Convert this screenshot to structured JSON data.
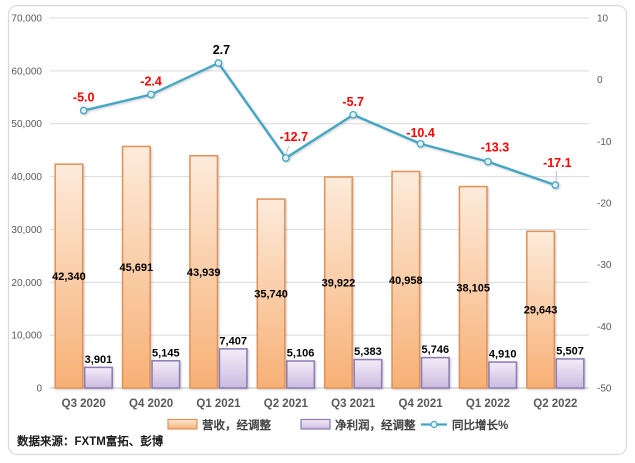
{
  "chart_data": {
    "type": "combo-bar-line",
    "categories": [
      "Q3 2020",
      "Q4 2020",
      "Q1 2021",
      "Q2 2021",
      "Q3 2021",
      "Q4 2021",
      "Q1 2022",
      "Q2 2022"
    ],
    "series": [
      {
        "name": "营收，经调整",
        "type": "bar",
        "axis": "left",
        "values": [
          42340,
          45691,
          43939,
          35740,
          39922,
          40958,
          38105,
          29643
        ],
        "value_labels": [
          "42,340",
          "45,691",
          "43,939",
          "35,740",
          "39,922",
          "40,958",
          "38,105",
          "29,643"
        ],
        "label_placement": "inside-center",
        "fill_top": "#FDEBDB",
        "fill_bottom": "#F7B075",
        "border": "#E09258"
      },
      {
        "name": "净利润，经调整",
        "type": "bar",
        "axis": "left",
        "values": [
          3901,
          5145,
          7407,
          5106,
          5383,
          5746,
          4910,
          5507
        ],
        "value_labels": [
          "3,901",
          "5,145",
          "7,407",
          "5,106",
          "5,383",
          "5,746",
          "4,910",
          "5,507"
        ],
        "label_placement": "outside-end",
        "fill_top": "#F2EDF8",
        "fill_bottom": "#CCBBE0",
        "border": "#8E7AB5"
      },
      {
        "name": "同比增长%",
        "type": "line",
        "axis": "right",
        "values": [
          -5.0,
          -2.4,
          2.7,
          -12.7,
          -5.7,
          -10.4,
          -13.3,
          -17.1
        ],
        "value_labels": [
          "-5.0",
          "-2.4",
          "2.7",
          "-12.7",
          "-5.7",
          "-10.4",
          "-13.3",
          "-17.1"
        ],
        "color": "#41A6C3",
        "marker_fill": "#E8F3F7",
        "label_default_color": "#FF0000",
        "label_color_overrides": {
          "2": "#000000"
        }
      }
    ],
    "left_axis": {
      "min": 0,
      "max": 70000,
      "step": 10000,
      "tick_labels": [
        "0",
        "10,000",
        "20,000",
        "30,000",
        "40,000",
        "50,000",
        "60,000",
        "70,000"
      ]
    },
    "right_axis": {
      "max": 10,
      "min": -50,
      "step": 10,
      "tick_labels_top_to_bottom": [
        "10",
        "0",
        "-10",
        "-20",
        "-30",
        "-40",
        "-50"
      ]
    },
    "grid": true,
    "legend_position": "bottom",
    "legend": [
      "营收，经调整",
      "净利润，经调整",
      "同比增长%"
    ]
  },
  "footer": {
    "source_label": "数据来源：FXTM富拓、彭博"
  },
  "theme": {
    "axis_text": "#595959",
    "grid_color": "#D9D9D9",
    "baseline_color": "#BFBFBF",
    "frame_border": "#D9D9D9",
    "background": "#FFFFFF",
    "bar_label_color": "#000000",
    "leader_color": "#BFBFBF",
    "legend_text": "#404040"
  }
}
